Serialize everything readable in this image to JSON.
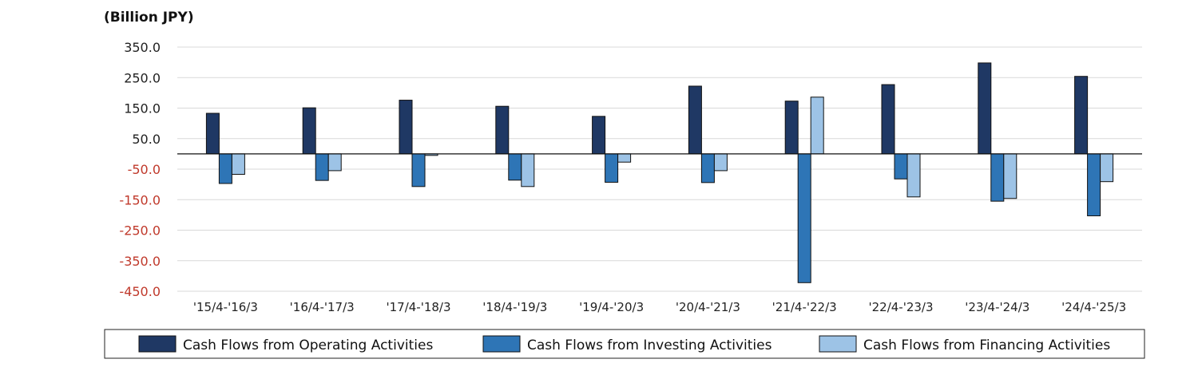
{
  "chart_data": {
    "type": "bar",
    "unit_label": "(Billion JPY)",
    "categories": [
      "'15/4-'16/3",
      "'16/4-'17/3",
      "'17/4-'18/3",
      "'18/4-'19/3",
      "'19/4-'20/3",
      "'20/4-'21/3",
      "'21/4-'22/3",
      "'22/4-'23/3",
      "'23/4-'24/3",
      "'24/4-'25/3"
    ],
    "series": [
      {
        "name": "Cash Flows from Operating Activities",
        "color": "#1f3864",
        "values": [
          133,
          151,
          176,
          156,
          123,
          222,
          173,
          227,
          298,
          254
        ]
      },
      {
        "name": "Cash Flows from Investing Activities",
        "color": "#2e75b6",
        "values": [
          -97,
          -87,
          -107,
          -86,
          -93,
          -94,
          -422,
          -82,
          -155,
          -203
        ]
      },
      {
        "name": "Cash Flows from Financing Activities",
        "color": "#9dc3e6",
        "values": [
          -67,
          -55,
          -5,
          -107,
          -27,
          -55,
          186,
          -141,
          -146,
          -91
        ]
      }
    ],
    "ylim": [
      -450,
      350
    ],
    "yticks": [
      350,
      250,
      150,
      50,
      -50,
      -150,
      -250,
      -350,
      -450
    ],
    "ytick_labels": [
      "350.0",
      "250.0",
      "150.0",
      "50.0",
      "-50.0",
      "-150.0",
      "-250.0",
      "-350.0",
      "-450.0"
    ],
    "tick_color_positive": "#222222",
    "tick_color_negative": "#c0392b",
    "grid": true,
    "legend": "bottom"
  }
}
